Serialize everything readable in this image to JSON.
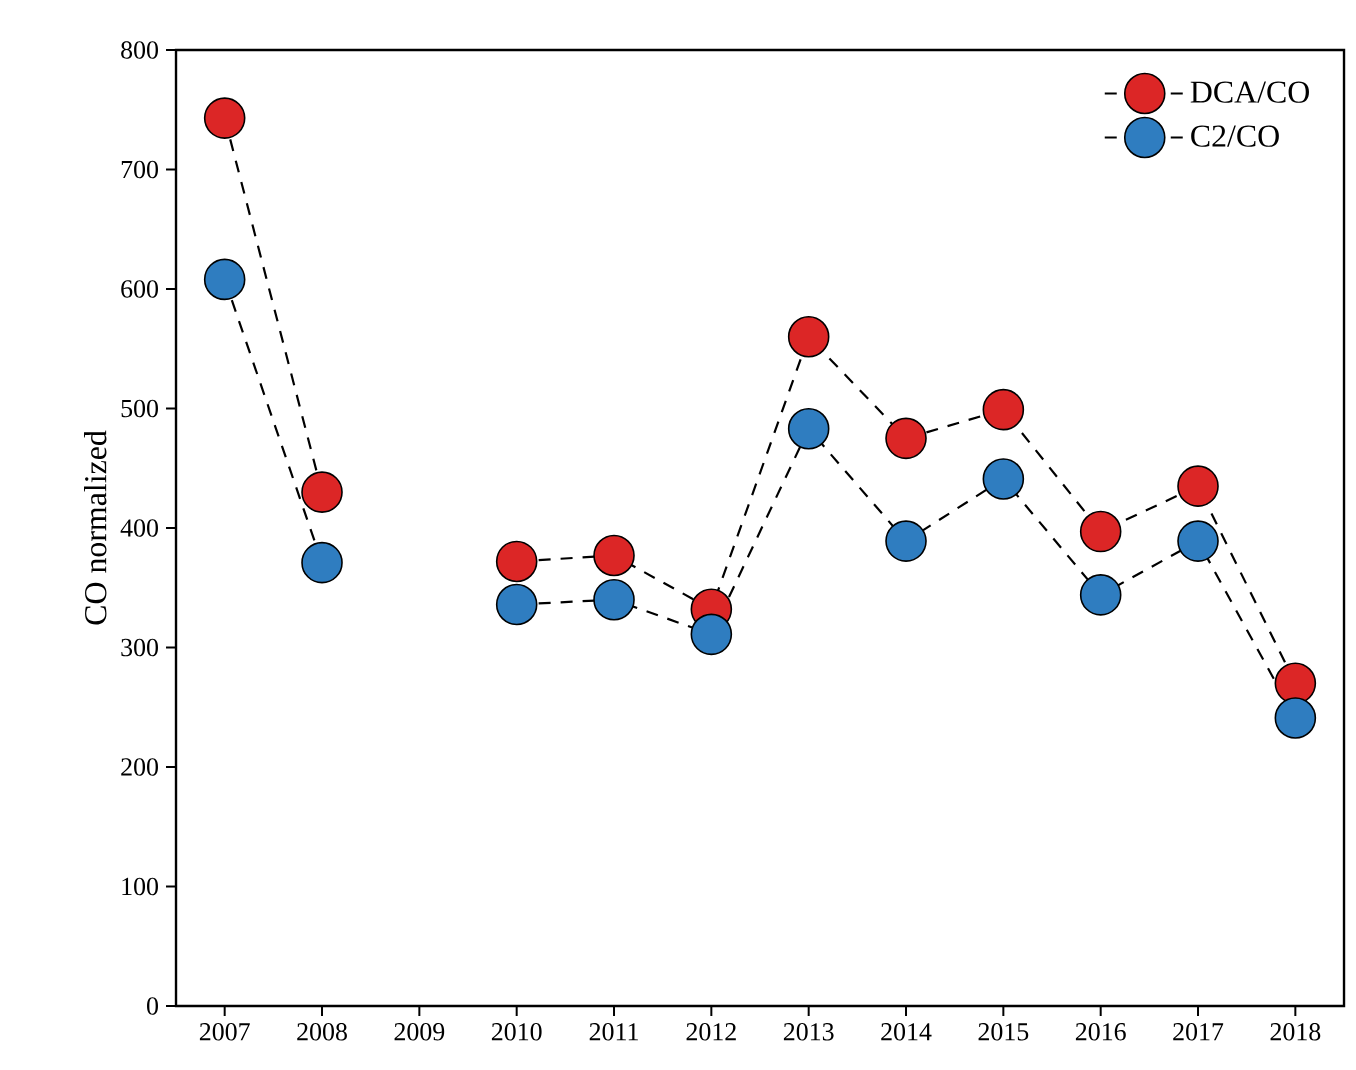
{
  "chart_data": {
    "type": "line",
    "ylabel": "CO normalized",
    "categories": [
      "2007",
      "2008",
      "2009",
      "2010",
      "2011",
      "2012",
      "2013",
      "2014",
      "2015",
      "2016",
      "2017",
      "2018"
    ],
    "series": [
      {
        "name": "DCA/CO",
        "color": "#dc2626",
        "values": [
          743,
          430,
          null,
          372,
          377,
          332,
          560,
          475,
          499,
          397,
          435,
          270
        ]
      },
      {
        "name": "C2/CO",
        "color": "#2f7dc0",
        "values": [
          608,
          371,
          null,
          336,
          340,
          311,
          483,
          389,
          441,
          344,
          389,
          241
        ]
      }
    ],
    "ylim": [
      0,
      800
    ],
    "yticks": [
      0,
      100,
      200,
      300,
      400,
      500,
      600,
      700,
      800
    ],
    "grid": false,
    "legend": "top right",
    "marker": "circle",
    "line_style": "dashed"
  }
}
